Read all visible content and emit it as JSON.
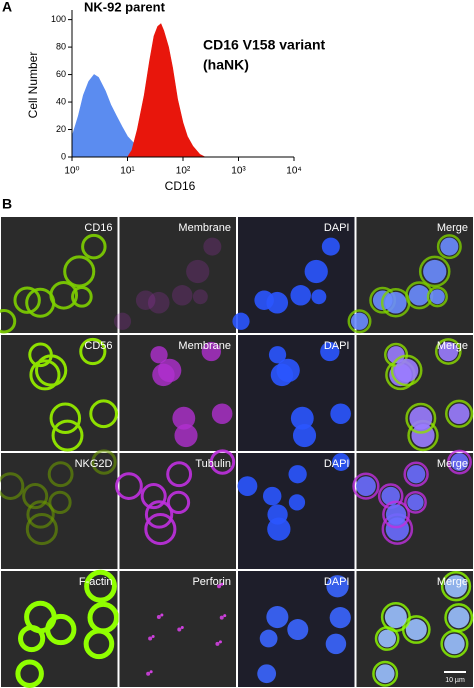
{
  "chart_data": {
    "type": "histogram",
    "panel_label": "A",
    "annotations": [
      "NK-92 parent",
      "CD16 V158 variant",
      "(haNK)"
    ],
    "xlabel": "CD16",
    "ylabel": "Cell Number",
    "xscale": "log",
    "xlim": [
      1,
      10000
    ],
    "xticks": [
      {
        "value": 1,
        "label": "10⁰"
      },
      {
        "value": 10,
        "label": "10¹"
      },
      {
        "value": 100,
        "label": "10²"
      },
      {
        "value": 1000,
        "label": "10³"
      },
      {
        "value": 10000,
        "label": "10⁴"
      }
    ],
    "ylim": [
      0,
      107
    ],
    "yticks": [
      0,
      20,
      40,
      60,
      80,
      100
    ],
    "series": [
      {
        "color": "#5b8cf0",
        "x": [
          1,
          1.3,
          1.6,
          2,
          2.5,
          3,
          4,
          5,
          6.3,
          8,
          10,
          13,
          16,
          20,
          25,
          32
        ],
        "values": [
          15,
          30,
          45,
          55,
          60,
          58,
          48,
          38,
          30,
          22,
          15,
          10,
          6,
          3,
          1,
          0
        ]
      },
      {
        "color": "#e8160c",
        "x": [
          10,
          12,
          15,
          20,
          25,
          30,
          35,
          40,
          45,
          55,
          65,
          80,
          100,
          120,
          150,
          200,
          250
        ],
        "values": [
          0,
          5,
          20,
          45,
          70,
          88,
          95,
          97,
          92,
          80,
          65,
          42,
          25,
          15,
          8,
          2,
          0
        ]
      }
    ]
  },
  "panel_b": {
    "label": "B",
    "rows": [
      [
        "CD16",
        "Membrane",
        "DAPI",
        "Merge"
      ],
      [
        "CD56",
        "Membrane",
        "DAPI",
        "Merge"
      ],
      [
        "NKG2D",
        "Tubulin",
        "DAPI",
        "Merge"
      ],
      [
        "F-actin",
        "Perforin",
        "DAPI",
        "Merge"
      ]
    ],
    "scale_bar": "10 µm"
  }
}
